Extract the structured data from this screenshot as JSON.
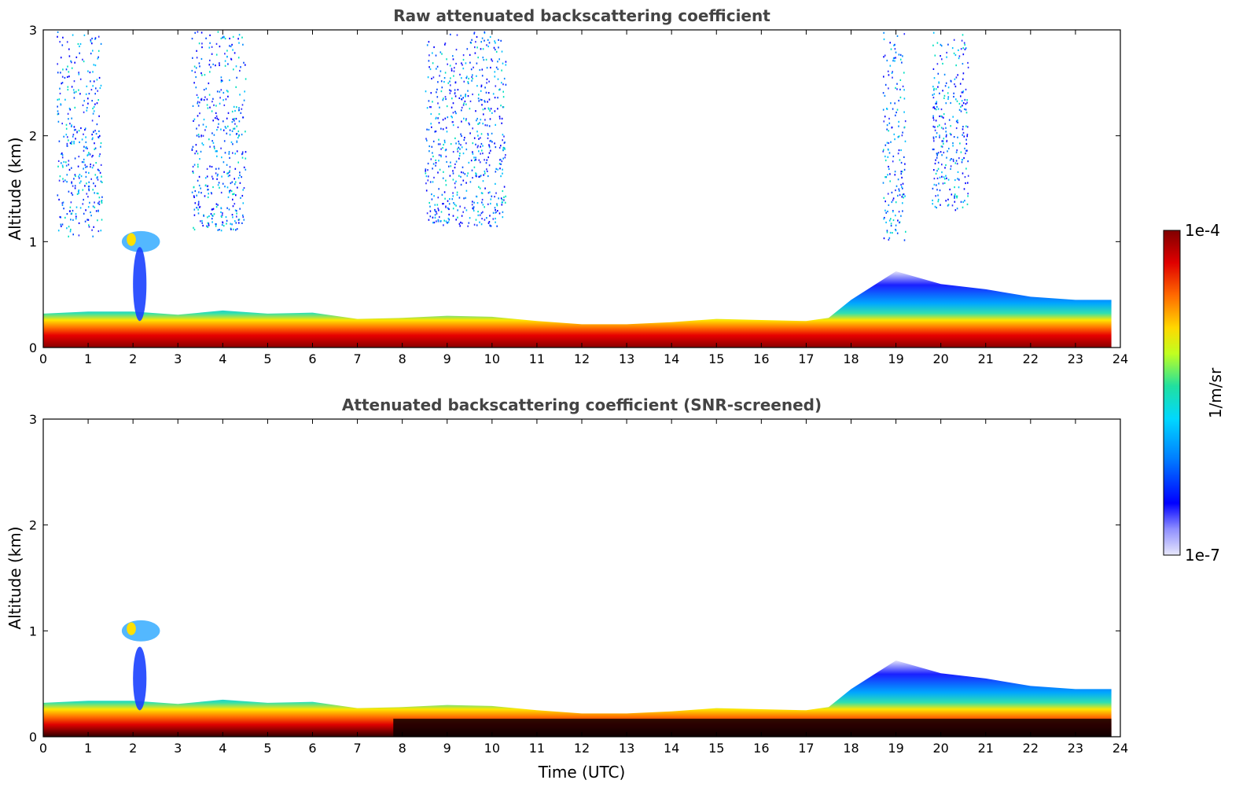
{
  "chart_data": [
    {
      "type": "heatmap",
      "title": "Raw attenuated backscattering coefficient",
      "xlabel": "",
      "ylabel": "Altitude (km)",
      "x_ticks": [
        "0",
        "1",
        "2",
        "3",
        "4",
        "5",
        "6",
        "7",
        "8",
        "9",
        "10",
        "11",
        "12",
        "13",
        "14",
        "15",
        "16",
        "17",
        "18",
        "19",
        "20",
        "21",
        "22",
        "23",
        "24"
      ],
      "y_ticks": [
        "0",
        "1",
        "2",
        "3"
      ],
      "xlim": [
        0,
        24
      ],
      "ylim": [
        0,
        3
      ],
      "x_unit": "Time (UTC, h)",
      "y_unit": "km",
      "boundary_layer_top_km": [
        [
          0,
          0.32
        ],
        [
          1,
          0.34
        ],
        [
          2,
          0.34
        ],
        [
          3,
          0.31
        ],
        [
          4,
          0.35
        ],
        [
          5,
          0.32
        ],
        [
          6,
          0.33
        ],
        [
          7,
          0.27
        ],
        [
          8,
          0.28
        ],
        [
          9,
          0.3
        ],
        [
          10,
          0.29
        ],
        [
          11,
          0.25
        ],
        [
          12,
          0.22
        ],
        [
          13,
          0.22
        ],
        [
          14,
          0.24
        ],
        [
          15,
          0.27
        ],
        [
          16,
          0.26
        ],
        [
          17,
          0.25
        ],
        [
          17.5,
          0.28
        ],
        [
          18,
          0.45
        ],
        [
          19,
          0.72
        ],
        [
          20,
          0.6
        ],
        [
          21,
          0.55
        ],
        [
          22,
          0.48
        ],
        [
          23,
          0.45
        ],
        [
          23.8,
          0.45
        ]
      ],
      "cloud_features": [
        {
          "x_start": 1.75,
          "x_end": 2.6,
          "altitude_km_top": 1.1,
          "altitude_km_base": 0.9
        },
        {
          "x_start": 2.0,
          "x_end": 2.3,
          "altitude_km_top": 0.95,
          "altitude_km_base": 0.25
        }
      ],
      "noise_columns": [
        {
          "x_start": 0.3,
          "x_end": 1.3,
          "altitude_km_lower": 1.05
        },
        {
          "x_start": 3.3,
          "x_end": 4.5,
          "altitude_km_lower": 1.1
        },
        {
          "x_start": 8.5,
          "x_end": 10.3,
          "altitude_km_lower": 1.15
        },
        {
          "x_start": 18.7,
          "x_end": 19.2,
          "altitude_km_lower": 1.0
        },
        {
          "x_start": 19.8,
          "x_end": 20.6,
          "altitude_km_lower": 1.3
        }
      ]
    },
    {
      "type": "heatmap",
      "title": "Attenuated backscattering coefficient (SNR-screened)",
      "xlabel": "Time (UTC)",
      "ylabel": "Altitude (km)",
      "x_ticks": [
        "0",
        "1",
        "2",
        "3",
        "4",
        "5",
        "6",
        "7",
        "8",
        "9",
        "10",
        "11",
        "12",
        "13",
        "14",
        "15",
        "16",
        "17",
        "18",
        "19",
        "20",
        "21",
        "22",
        "23",
        "24"
      ],
      "y_ticks": [
        "0",
        "1",
        "2",
        "3"
      ],
      "xlim": [
        0,
        24
      ],
      "ylim": [
        0,
        3
      ],
      "x_unit": "Time (UTC, h)",
      "y_unit": "km",
      "boundary_layer_top_km": [
        [
          0,
          0.32
        ],
        [
          1,
          0.34
        ],
        [
          2,
          0.34
        ],
        [
          3,
          0.31
        ],
        [
          4,
          0.35
        ],
        [
          5,
          0.32
        ],
        [
          6,
          0.33
        ],
        [
          7,
          0.27
        ],
        [
          8,
          0.28
        ],
        [
          9,
          0.3
        ],
        [
          10,
          0.29
        ],
        [
          11,
          0.25
        ],
        [
          12,
          0.22
        ],
        [
          13,
          0.22
        ],
        [
          14,
          0.24
        ],
        [
          15,
          0.27
        ],
        [
          16,
          0.26
        ],
        [
          17,
          0.25
        ],
        [
          17.5,
          0.28
        ],
        [
          18,
          0.45
        ],
        [
          19,
          0.72
        ],
        [
          20,
          0.6
        ],
        [
          21,
          0.55
        ],
        [
          22,
          0.48
        ],
        [
          23,
          0.45
        ],
        [
          23.8,
          0.45
        ]
      ],
      "cloud_features": [
        {
          "x_start": 1.75,
          "x_end": 2.6,
          "altitude_km_top": 1.1,
          "altitude_km_base": 0.9
        },
        {
          "x_start": 2.0,
          "x_end": 2.3,
          "altitude_km_top": 0.85,
          "altitude_km_base": 0.25
        }
      ],
      "screened_black_region_from_x": 7.8
    }
  ],
  "colorbar": {
    "label": "1/m/sr",
    "max_label": "1e-4",
    "min_label": "1e-7",
    "scale": "log",
    "range": [
      1e-07,
      0.0001
    ],
    "colormap": "jet (light-blue to dark red)",
    "colors": [
      "#e6e6f8",
      "#0000ff",
      "#00aaff",
      "#00e5c8",
      "#ffff00",
      "#ff8800",
      "#ff0000",
      "#800000"
    ]
  }
}
